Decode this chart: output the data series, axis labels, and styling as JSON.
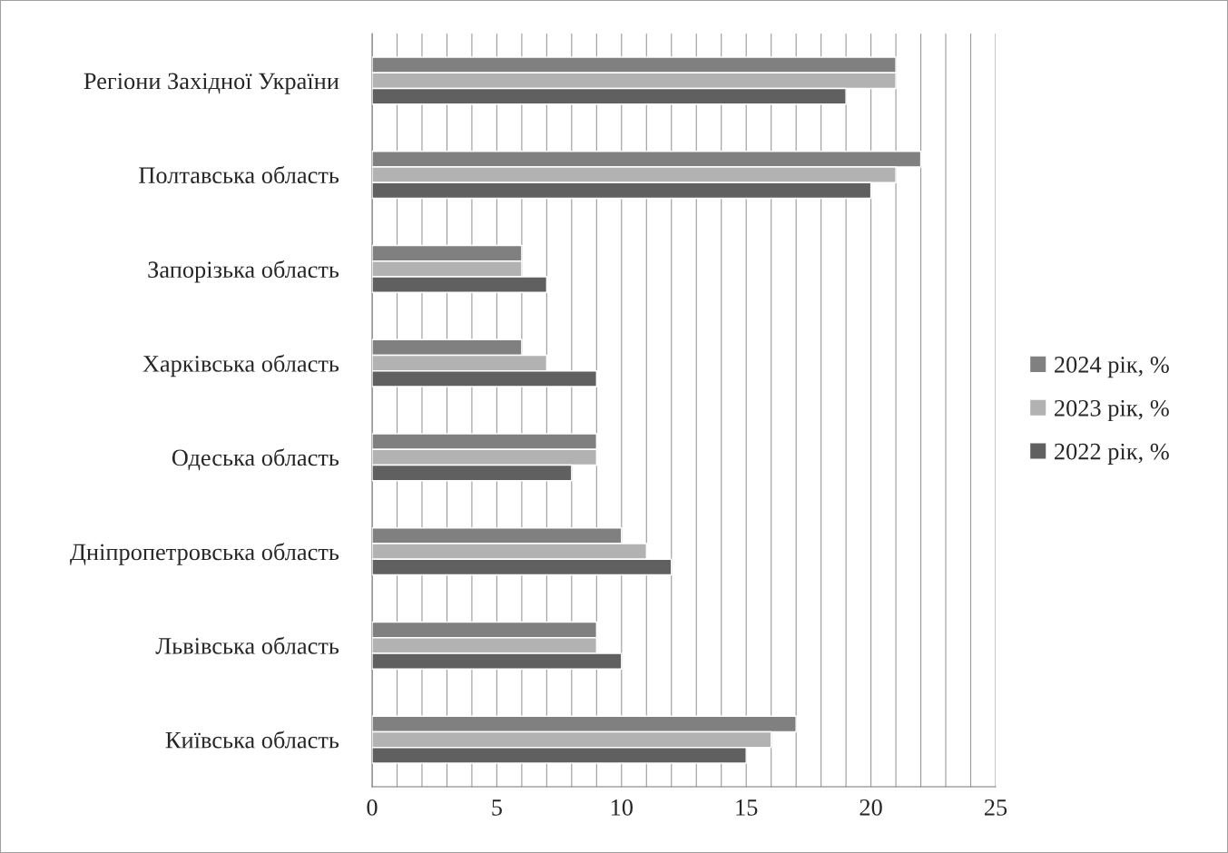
{
  "chart_data": {
    "type": "bar",
    "orientation": "horizontal",
    "categories": [
      "Регіони Західної України",
      "Полтавська область",
      "Запорізька область",
      "Харківська область",
      "Одеська область",
      "Дніпропетровська область",
      "Львівська область",
      "Київська область"
    ],
    "series": [
      {
        "name": "2024 рік, %",
        "color": "#808080",
        "values": [
          21,
          22,
          6,
          6,
          9,
          10,
          9,
          17
        ]
      },
      {
        "name": "2023 рік, %",
        "color": "#b2b2b2",
        "values": [
          21,
          21,
          6,
          7,
          9,
          11,
          9,
          16
        ]
      },
      {
        "name": "2022 рік, %",
        "color": "#606060",
        "values": [
          19,
          20,
          7,
          9,
          8,
          12,
          10,
          15
        ]
      }
    ],
    "xlim": [
      0,
      25
    ],
    "xticks": [
      0,
      {
        "value": 1,
        "label": null
      },
      {
        "value": 2,
        "label": null
      },
      {
        "value": 3,
        "label": null
      },
      {
        "value": 4,
        "label": null
      },
      5,
      {
        "value": 6,
        "label": null
      },
      {
        "value": 7,
        "label": null
      },
      {
        "value": 8,
        "label": null
      },
      {
        "value": 9,
        "label": null
      },
      10,
      {
        "value": 11,
        "label": null
      },
      {
        "value": 12,
        "label": null
      },
      {
        "value": 13,
        "label": null
      },
      {
        "value": 14,
        "label": null
      },
      15,
      {
        "value": 16,
        "label": null
      },
      {
        "value": 17,
        "label": null
      },
      {
        "value": 18,
        "label": null
      },
      {
        "value": 19,
        "label": null
      },
      20,
      {
        "value": 21,
        "label": null
      },
      {
        "value": 22,
        "label": null
      },
      {
        "value": 23,
        "label": null
      },
      {
        "value": 24,
        "label": null
      },
      25
    ],
    "grid": "x",
    "legend": "right"
  }
}
